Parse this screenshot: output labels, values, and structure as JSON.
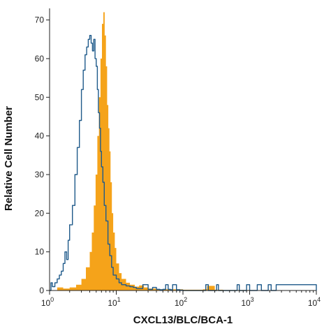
{
  "chart_data": {
    "type": "area",
    "xlabel": "CXCL13/BLC/BCA-1",
    "ylabel": "Relative Cell Number",
    "x_scale": "log",
    "xlim": [
      1,
      10000
    ],
    "ylim": [
      0,
      73
    ],
    "x_ticks": [
      {
        "value": 1,
        "base": "10",
        "exp": "0"
      },
      {
        "value": 10,
        "base": "10",
        "exp": "1"
      },
      {
        "value": 100,
        "base": "10",
        "exp": "2"
      },
      {
        "value": 1000,
        "base": "10",
        "exp": "3"
      },
      {
        "value": 10000,
        "base": "10",
        "exp": "4"
      }
    ],
    "y_ticks": [
      0,
      10,
      20,
      30,
      40,
      50,
      60,
      70
    ],
    "grid": false,
    "legend": "none",
    "series": [
      {
        "style": "filled",
        "color": "#f5a31a",
        "x": [
          1.0,
          1.3,
          1.6,
          2.0,
          2.5,
          3.0,
          3.5,
          4.0,
          4.3,
          4.6,
          4.9,
          5.2,
          5.5,
          5.8,
          6.1,
          6.4,
          6.7,
          7.0,
          7.3,
          7.6,
          7.9,
          8.2,
          8.6,
          9.0,
          9.5,
          10.0,
          11.0,
          12.0,
          14.0,
          16.0,
          19.0,
          22.0,
          26.0,
          30.0,
          40.0,
          60.0,
          100.0,
          200.0,
          230.0,
          300.0,
          400.0,
          1000.0,
          10000.0
        ],
        "y": [
          0,
          0.8,
          0.5,
          0.8,
          1.5,
          3,
          6,
          10,
          15,
          22,
          30,
          40,
          50,
          60,
          69,
          72,
          66,
          58,
          48,
          42,
          36,
          28,
          20,
          15,
          11,
          7,
          4.5,
          3,
          2,
          1.5,
          1,
          1.3,
          0.8,
          0.5,
          0.3,
          0.3,
          0.2,
          0.3,
          1.2,
          0.2,
          0.1,
          0,
          0
        ]
      },
      {
        "style": "outline",
        "color": "#1f5a8a",
        "x": [
          1.0,
          1.05,
          1.1,
          1.2,
          1.3,
          1.4,
          1.5,
          1.6,
          1.7,
          1.8,
          1.9,
          2.0,
          2.2,
          2.4,
          2.6,
          2.8,
          3.0,
          3.2,
          3.4,
          3.6,
          3.8,
          4.0,
          4.2,
          4.4,
          4.6,
          4.8,
          5.0,
          5.2,
          5.4,
          5.6,
          5.8,
          6.0,
          6.3,
          6.6,
          7.0,
          7.5,
          8.0,
          8.5,
          9.0,
          10.0,
          11.0,
          12.0,
          14.0,
          16.0,
          18.0,
          20.0,
          25.0,
          30.0,
          35.0,
          40.0,
          45.0,
          50.0,
          55.0,
          60.0,
          65.0,
          70.0,
          80.0,
          90.0,
          100.0,
          200.0,
          220.0,
          240.0,
          300.0,
          320.0,
          340.0,
          600.0,
          650.0,
          700.0,
          850.0,
          900.0,
          1000.0,
          1200.0,
          1300.0,
          1500.0,
          1800.0,
          1900.0,
          2100.0,
          2300.0,
          2500.0,
          10000.0
        ],
        "y": [
          0,
          2,
          1,
          2,
          3,
          4,
          5,
          7,
          10,
          8,
          13,
          17,
          22,
          30,
          37,
          44,
          52,
          57,
          61,
          63,
          65,
          66,
          64,
          62,
          65,
          60,
          58,
          52,
          46,
          42,
          36,
          32,
          28,
          22,
          18,
          12,
          9,
          6,
          4,
          3,
          2,
          1.5,
          1.2,
          1,
          0.8,
          0.5,
          1.5,
          0.3,
          0.8,
          0.3,
          0.2,
          0.3,
          1.5,
          0.3,
          0.2,
          1.5,
          0.2,
          0.1,
          0,
          0,
          1.5,
          0,
          0,
          1.5,
          0,
          0,
          1.5,
          0,
          0,
          1.5,
          0,
          0,
          1.5,
          0,
          0,
          1.5,
          0,
          0,
          1.5,
          0
        ]
      }
    ]
  }
}
